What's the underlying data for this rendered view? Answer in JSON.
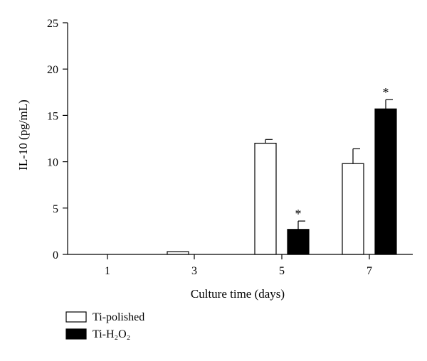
{
  "chart_data": {
    "type": "bar",
    "title": "",
    "xlabel": "Culture time (days)",
    "ylabel": "IL-10 (pg/mL)",
    "ylim": [
      0,
      25
    ],
    "yticks": [
      0,
      5,
      10,
      15,
      20,
      25
    ],
    "categories": [
      "1",
      "3",
      "5",
      "7"
    ],
    "series": [
      {
        "name": "Ti-polished",
        "fill": "#ffffff",
        "values": [
          0.0,
          0.3,
          12.0,
          9.8
        ],
        "errors": [
          0,
          0,
          0.4,
          1.6
        ],
        "significance": [
          "",
          "",
          "",
          ""
        ]
      },
      {
        "name": "Ti-H₂O₂",
        "fill": "#000000",
        "values": [
          0.0,
          0.0,
          2.7,
          15.7
        ],
        "errors": [
          0,
          0,
          0.9,
          1.0
        ],
        "significance": [
          "",
          "",
          "*",
          "*"
        ]
      }
    ],
    "grid": false,
    "legend_position": "bottom-left"
  }
}
